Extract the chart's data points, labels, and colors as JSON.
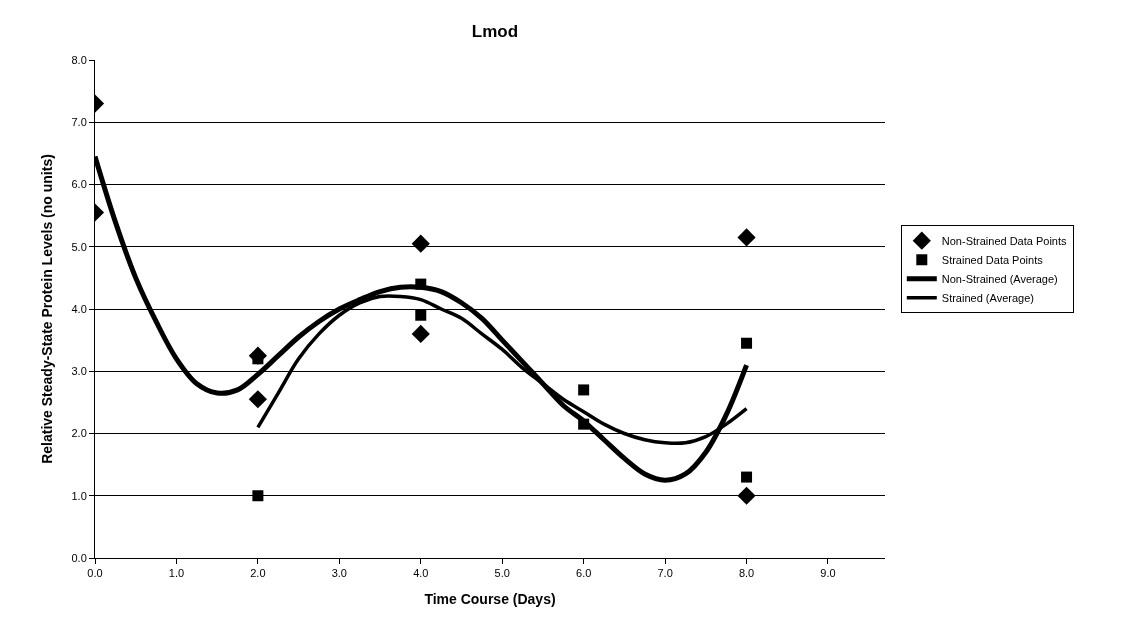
{
  "chart_data": {
    "type": "scatter",
    "title": "Lmod",
    "xlabel": "Time Course (Days)",
    "ylabel": "Relative Steady-State Protein Levels (no units)",
    "xlim": [
      0,
      9.7
    ],
    "xticks": [
      {
        "value": 0,
        "label": "0.0"
      },
      {
        "value": 1,
        "label": "1.0"
      },
      {
        "value": 2,
        "label": "2.0"
      },
      {
        "value": 3,
        "label": "3.0"
      },
      {
        "value": 4,
        "label": "4.0"
      },
      {
        "value": 5,
        "label": "5.0"
      },
      {
        "value": 6,
        "label": "6.0"
      },
      {
        "value": 7,
        "label": "7.0"
      },
      {
        "value": 8,
        "label": "8.0"
      },
      {
        "value": 9,
        "label": "9.0"
      }
    ],
    "ylim": [
      0,
      8
    ],
    "yticks": [
      {
        "value": 0,
        "label": "0.0"
      },
      {
        "value": 1,
        "label": "1.0"
      },
      {
        "value": 2,
        "label": "2.0"
      },
      {
        "value": 3,
        "label": "3.0"
      },
      {
        "value": 4,
        "label": "4.0"
      },
      {
        "value": 5,
        "label": "5.0"
      },
      {
        "value": 6,
        "label": "6.0"
      },
      {
        "value": 7,
        "label": "7.0"
      },
      {
        "value": 8,
        "label": "8.0"
      }
    ],
    "grid": "y",
    "legend": "right",
    "series": [
      {
        "name": "Non-Strained Data Points",
        "marker": "diamond",
        "color": "#000000",
        "x": [
          0,
          0,
          2,
          2,
          4,
          4,
          6,
          8,
          8
        ],
        "values": [
          7.3,
          5.55,
          3.25,
          2.55,
          5.05,
          3.6,
          null,
          5.15,
          1.0
        ]
      },
      {
        "name": "Strained Data Points",
        "marker": "square",
        "color": "#000000",
        "x": [
          2,
          2,
          4,
          4,
          6,
          6,
          8,
          8
        ],
        "values": [
          3.2,
          1.0,
          4.4,
          3.9,
          2.7,
          2.15,
          3.45,
          1.3
        ]
      },
      {
        "name": "Non-Strained (Average)",
        "type": "line",
        "marker": "none",
        "color": "#000000",
        "x": [
          0,
          0.25,
          0.5,
          0.75,
          1.0,
          1.25,
          1.5,
          1.75,
          2.0,
          2.25,
          2.5,
          2.75,
          3.0,
          3.25,
          3.5,
          3.75,
          4.0,
          4.25,
          4.5,
          4.75,
          5.0,
          5.25,
          5.5,
          5.75,
          6.0,
          6.25,
          6.5,
          6.75,
          7.0,
          7.25,
          7.5,
          7.75,
          8.0
        ],
        "values": [
          6.45,
          5.4,
          4.5,
          3.8,
          3.2,
          2.8,
          2.65,
          2.7,
          2.95,
          3.25,
          3.55,
          3.8,
          4.0,
          4.15,
          4.28,
          4.35,
          4.35,
          4.28,
          4.1,
          3.85,
          3.5,
          3.15,
          2.8,
          2.45,
          2.2,
          1.9,
          1.6,
          1.35,
          1.25,
          1.35,
          1.7,
          2.3,
          3.1
        ]
      },
      {
        "name": "Strained (Average)",
        "type": "line",
        "marker": "none",
        "color": "#000000",
        "x": [
          2.0,
          2.25,
          2.5,
          2.75,
          3.0,
          3.25,
          3.5,
          3.75,
          4.0,
          4.25,
          4.5,
          4.75,
          5.0,
          5.25,
          5.5,
          5.75,
          6.0,
          6.25,
          6.5,
          6.75,
          7.0,
          7.25,
          7.5,
          7.75,
          8.0
        ],
        "values": [
          2.1,
          2.65,
          3.2,
          3.6,
          3.9,
          4.1,
          4.2,
          4.2,
          4.15,
          4.0,
          3.85,
          3.6,
          3.35,
          3.05,
          2.8,
          2.55,
          2.35,
          2.15,
          2.0,
          1.9,
          1.85,
          1.85,
          1.95,
          2.15,
          2.4
        ]
      }
    ]
  }
}
